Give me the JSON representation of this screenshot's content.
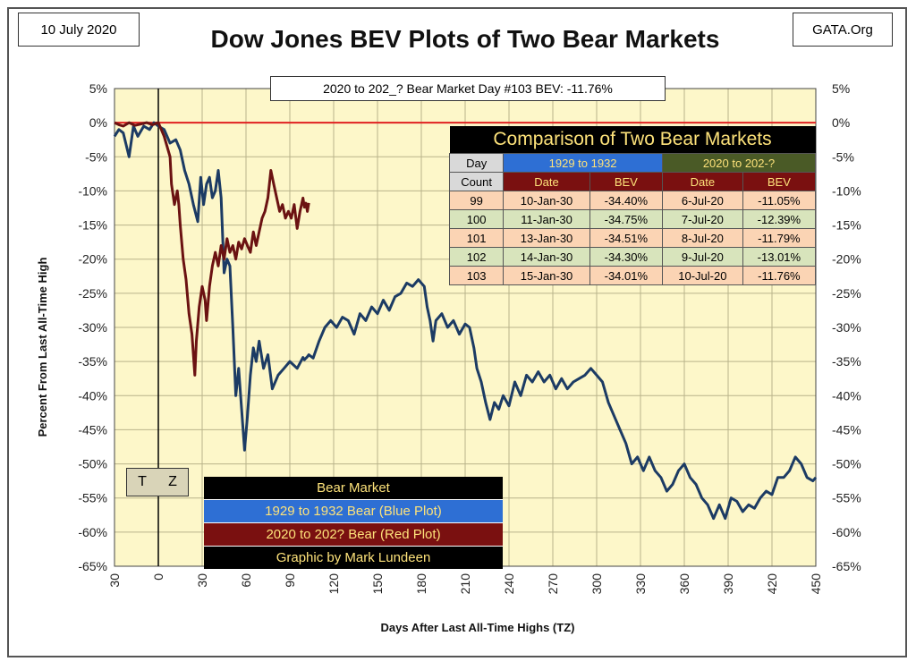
{
  "header": {
    "date": "10 July 2020",
    "title": "Dow Jones BEV Plots of Two Bear Markets",
    "site": "GATA.Org"
  },
  "annotation": "2020 to 202_? Bear Market Day #103 BEV: -11.76%",
  "tz_label": {
    "t": "T",
    "z": "Z"
  },
  "legend": {
    "header": "Bear Market",
    "blue": "1929 to 1932 Bear (Blue Plot)",
    "red": "2020 to 202? Bear (Red Plot)",
    "credit": "Graphic by Mark Lundeen"
  },
  "comparison": {
    "title": "Comparison of Two Bear Markets",
    "col_day": "Day",
    "col_count": "Count",
    "group1": "1929 to 1932",
    "group2": "2020 to 202-?",
    "col_date": "Date",
    "col_bev": "BEV",
    "rows": [
      {
        "day": "99",
        "d1": "10-Jan-30",
        "b1": "-34.40%",
        "d2": "6-Jul-20",
        "b2": "-11.05%"
      },
      {
        "day": "100",
        "d1": "11-Jan-30",
        "b1": "-34.75%",
        "d2": "7-Jul-20",
        "b2": "-12.39%"
      },
      {
        "day": "101",
        "d1": "13-Jan-30",
        "b1": "-34.51%",
        "d2": "8-Jul-20",
        "b2": "-11.79%"
      },
      {
        "day": "102",
        "d1": "14-Jan-30",
        "b1": "-34.30%",
        "d2": "9-Jul-20",
        "b2": "-13.01%"
      },
      {
        "day": "103",
        "d1": "15-Jan-30",
        "b1": "-34.01%",
        "d2": "10-Jul-20",
        "b2": "-11.76%"
      }
    ]
  },
  "colors": {
    "plot_bg": "#fdf7c9",
    "grid": "#b9b38a",
    "blue": "#1c3b64",
    "red": "#6b1212",
    "zero_line": "#e02020",
    "legend_header_bg": "#000000",
    "legend_blue_bg": "#2e6fd4",
    "legend_red_bg": "#7a1010",
    "legend_credit_bg": "#000000",
    "cmp_group1_bg": "#2e6fd4",
    "cmp_group2_bg": "#4a5a26",
    "cmp_sub_bg": "#7a1010",
    "cmp_row_odd": "#fbd4b4",
    "cmp_row_even": "#d8e4bc",
    "cmp_day_head_bg": "#d9d9d9",
    "tz_bg": "#d9d4b8"
  },
  "chart_data": {
    "type": "line",
    "xlabel": "Days After Last All-Time Highs (TZ)",
    "ylabel": "Percent From Last All-Time High",
    "xlim": [
      -30,
      450
    ],
    "ylim": [
      -65,
      5
    ],
    "x_ticks": [
      -30,
      0,
      30,
      60,
      90,
      120,
      150,
      180,
      210,
      240,
      270,
      300,
      330,
      360,
      390,
      420,
      450
    ],
    "x_tick_labels": [
      "30",
      "0",
      "30",
      "60",
      "90",
      "120",
      "150",
      "180",
      "210",
      "240",
      "270",
      "300",
      "330",
      "360",
      "390",
      "420",
      "450"
    ],
    "y_ticks": [
      5,
      0,
      -5,
      -10,
      -15,
      -20,
      -25,
      -30,
      -35,
      -40,
      -45,
      -50,
      -55,
      -60,
      -65
    ],
    "y_tick_labels": [
      "5%",
      "0%",
      "-5%",
      "-10%",
      "-15%",
      "-20%",
      "-25%",
      "-30%",
      "-35%",
      "-40%",
      "-45%",
      "-50%",
      "-55%",
      "-60%",
      "-65%"
    ],
    "grid": true,
    "series": [
      {
        "name": "1929 to 1932 Bear (Blue Plot)",
        "color": "#1c3b64",
        "points": [
          [
            -30,
            -2
          ],
          [
            -27,
            -1
          ],
          [
            -24,
            -1.5
          ],
          [
            -20,
            -5
          ],
          [
            -17,
            -0.5
          ],
          [
            -14,
            -2
          ],
          [
            -10,
            -0.5
          ],
          [
            -6,
            -1
          ],
          [
            -3,
            0
          ],
          [
            0,
            -0.5
          ],
          [
            4,
            -1
          ],
          [
            8,
            -3
          ],
          [
            12,
            -2.5
          ],
          [
            15,
            -4
          ],
          [
            18,
            -7
          ],
          [
            21,
            -9
          ],
          [
            24,
            -12
          ],
          [
            27,
            -14.5
          ],
          [
            29,
            -8
          ],
          [
            31,
            -12
          ],
          [
            33,
            -9
          ],
          [
            35,
            -8
          ],
          [
            37,
            -11
          ],
          [
            39,
            -10
          ],
          [
            41,
            -7
          ],
          [
            43,
            -11
          ],
          [
            45,
            -22
          ],
          [
            47,
            -20
          ],
          [
            49,
            -21
          ],
          [
            51,
            -30
          ],
          [
            53,
            -40
          ],
          [
            55,
            -36
          ],
          [
            57,
            -42
          ],
          [
            59,
            -48
          ],
          [
            61,
            -43
          ],
          [
            63,
            -37
          ],
          [
            65,
            -33
          ],
          [
            67,
            -35
          ],
          [
            69,
            -32
          ],
          [
            72,
            -36
          ],
          [
            75,
            -34
          ],
          [
            78,
            -39
          ],
          [
            82,
            -37
          ],
          [
            86,
            -36
          ],
          [
            90,
            -35
          ],
          [
            95,
            -36
          ],
          [
            99,
            -34.4
          ],
          [
            100,
            -34.75
          ],
          [
            101,
            -34.51
          ],
          [
            102,
            -34.3
          ],
          [
            103,
            -34.01
          ],
          [
            106,
            -34.5
          ],
          [
            110,
            -32
          ],
          [
            114,
            -30
          ],
          [
            118,
            -29
          ],
          [
            122,
            -30
          ],
          [
            126,
            -28.5
          ],
          [
            130,
            -29
          ],
          [
            134,
            -31
          ],
          [
            138,
            -28
          ],
          [
            142,
            -29
          ],
          [
            146,
            -27
          ],
          [
            150,
            -28
          ],
          [
            154,
            -26
          ],
          [
            158,
            -27.5
          ],
          [
            162,
            -25.5
          ],
          [
            166,
            -25
          ],
          [
            170,
            -23.5
          ],
          [
            174,
            -24
          ],
          [
            178,
            -23
          ],
          [
            182,
            -24
          ],
          [
            184,
            -27
          ],
          [
            186,
            -29
          ],
          [
            188,
            -32
          ],
          [
            190,
            -29
          ],
          [
            194,
            -28
          ],
          [
            198,
            -30
          ],
          [
            202,
            -29
          ],
          [
            206,
            -31
          ],
          [
            210,
            -29.5
          ],
          [
            213,
            -30
          ],
          [
            216,
            -33
          ],
          [
            218,
            -36
          ],
          [
            221,
            -38
          ],
          [
            224,
            -41
          ],
          [
            227,
            -43.5
          ],
          [
            230,
            -41
          ],
          [
            233,
            -42
          ],
          [
            236,
            -40
          ],
          [
            240,
            -41.5
          ],
          [
            244,
            -38
          ],
          [
            248,
            -40
          ],
          [
            252,
            -37
          ],
          [
            256,
            -38
          ],
          [
            260,
            -36.5
          ],
          [
            264,
            -38
          ],
          [
            268,
            -37
          ],
          [
            272,
            -39
          ],
          [
            276,
            -37.5
          ],
          [
            280,
            -39
          ],
          [
            284,
            -38
          ],
          [
            288,
            -37.5
          ],
          [
            292,
            -37
          ],
          [
            296,
            -36
          ],
          [
            300,
            -37
          ],
          [
            304,
            -38
          ],
          [
            308,
            -41
          ],
          [
            312,
            -43
          ],
          [
            316,
            -45
          ],
          [
            320,
            -47
          ],
          [
            324,
            -50
          ],
          [
            328,
            -49
          ],
          [
            332,
            -51
          ],
          [
            336,
            -49
          ],
          [
            340,
            -51
          ],
          [
            344,
            -52
          ],
          [
            348,
            -54
          ],
          [
            352,
            -53
          ],
          [
            356,
            -51
          ],
          [
            360,
            -50
          ],
          [
            364,
            -52
          ],
          [
            368,
            -53
          ],
          [
            372,
            -55
          ],
          [
            376,
            -56
          ],
          [
            380,
            -58
          ],
          [
            384,
            -56
          ],
          [
            388,
            -58
          ],
          [
            392,
            -55
          ],
          [
            396,
            -55.5
          ],
          [
            400,
            -57
          ],
          [
            404,
            -56
          ],
          [
            408,
            -56.5
          ],
          [
            412,
            -55
          ],
          [
            416,
            -54
          ],
          [
            420,
            -54.5
          ],
          [
            424,
            -52
          ],
          [
            428,
            -52
          ],
          [
            432,
            -51
          ],
          [
            436,
            -49
          ],
          [
            440,
            -50
          ],
          [
            444,
            -52
          ],
          [
            448,
            -52.5
          ],
          [
            450,
            -52
          ]
        ]
      },
      {
        "name": "2020 to 202? Bear (Red Plot)",
        "color": "#6b1212",
        "points": [
          [
            -30,
            0
          ],
          [
            -27,
            -0.3
          ],
          [
            -24,
            -0.5
          ],
          [
            -20,
            0
          ],
          [
            -16,
            -0.4
          ],
          [
            -12,
            -0.2
          ],
          [
            -8,
            0
          ],
          [
            -4,
            -0.3
          ],
          [
            0,
            0
          ],
          [
            2,
            -1
          ],
          [
            4,
            -2
          ],
          [
            6,
            -3.5
          ],
          [
            8,
            -5
          ],
          [
            9,
            -9
          ],
          [
            11,
            -12
          ],
          [
            13,
            -10
          ],
          [
            14,
            -12
          ],
          [
            15,
            -15
          ],
          [
            17,
            -20
          ],
          [
            19,
            -23
          ],
          [
            21,
            -28
          ],
          [
            23,
            -31
          ],
          [
            24,
            -34
          ],
          [
            25,
            -37
          ],
          [
            26,
            -32
          ],
          [
            28,
            -27
          ],
          [
            30,
            -24
          ],
          [
            32,
            -26
          ],
          [
            33,
            -29
          ],
          [
            35,
            -24
          ],
          [
            37,
            -21
          ],
          [
            39,
            -19
          ],
          [
            41,
            -21
          ],
          [
            43,
            -18
          ],
          [
            45,
            -20
          ],
          [
            47,
            -17
          ],
          [
            49,
            -19
          ],
          [
            51,
            -18
          ],
          [
            53,
            -20
          ],
          [
            55,
            -17.5
          ],
          [
            57,
            -18.5
          ],
          [
            59,
            -17
          ],
          [
            61,
            -18
          ],
          [
            63,
            -19
          ],
          [
            65,
            -16
          ],
          [
            67,
            -18
          ],
          [
            69,
            -16
          ],
          [
            71,
            -14
          ],
          [
            73,
            -13
          ],
          [
            75,
            -11
          ],
          [
            77,
            -7
          ],
          [
            79,
            -9
          ],
          [
            81,
            -11
          ],
          [
            83,
            -13
          ],
          [
            85,
            -12
          ],
          [
            87,
            -14
          ],
          [
            89,
            -13
          ],
          [
            91,
            -14
          ],
          [
            93,
            -12
          ],
          [
            95,
            -15.5
          ],
          [
            97,
            -13
          ],
          [
            99,
            -11.05
          ],
          [
            100,
            -12.39
          ],
          [
            101,
            -11.79
          ],
          [
            102,
            -13.01
          ],
          [
            103,
            -11.76
          ]
        ]
      }
    ]
  }
}
